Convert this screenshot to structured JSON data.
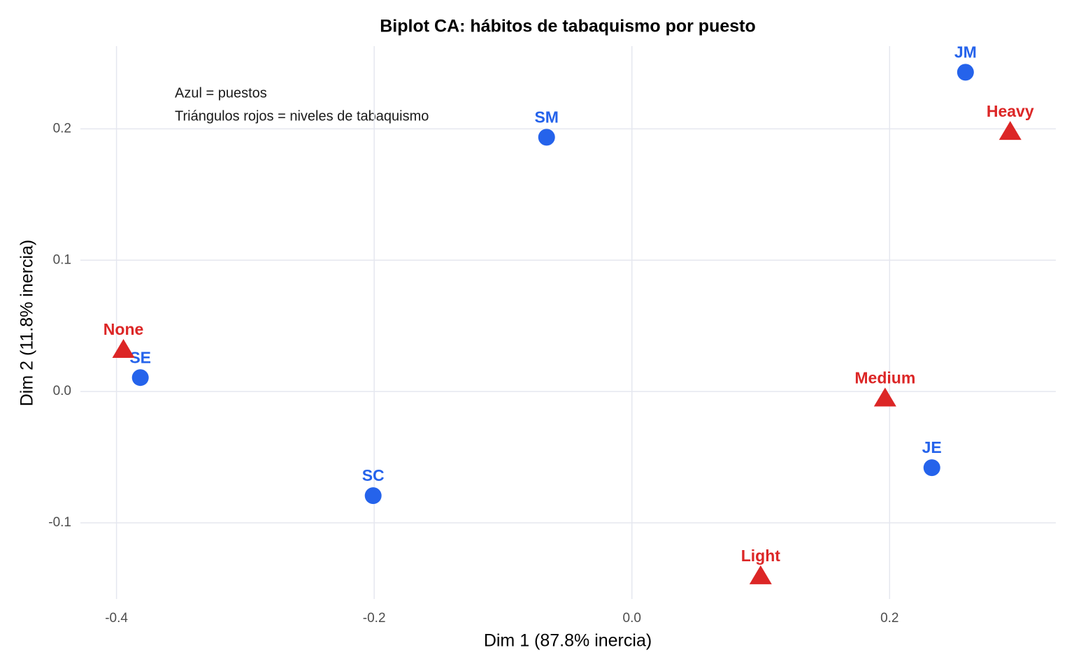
{
  "chart_data": {
    "type": "scatter",
    "title": "Biplot CA: hábitos de tabaquismo por puesto",
    "x_label": "Dim 1 (87.8% inercia)",
    "y_label": "Dim 2 (11.8% inercia)",
    "annotations": [
      "Azul = puestos",
      "Triángulos rojos = niveles de tabaquismo"
    ],
    "xlim": [
      -0.428,
      0.329
    ],
    "ylim": [
      -0.158,
      0.263
    ],
    "xticks": [
      -0.4,
      -0.2,
      {
        "value": 0,
        "label": "0.0"
      },
      0.2
    ],
    "yticks": [
      -0.1,
      {
        "value": 0,
        "label": "0.0"
      },
      0.1,
      0.2
    ],
    "grid": true,
    "series": [
      {
        "color": "#2563eb",
        "marker": "circle",
        "labels": [
          "SE",
          "SM",
          "JM",
          "JE",
          "SC"
        ],
        "x": [
          -0.3815,
          -0.0662,
          0.2589,
          0.2328,
          -0.2008
        ],
        "values": [
          0.0106,
          0.1936,
          0.2431,
          -0.058,
          -0.0793
        ]
      },
      {
        "color": "#dc2626",
        "marker": "triangle",
        "labels": [
          "None",
          "Light",
          "Medium",
          "Heavy"
        ],
        "x": [
          -0.3946,
          0.0999,
          0.1965,
          0.2936
        ],
        "values": [
          0.032,
          -0.1404,
          -0.005,
          0.198
        ]
      }
    ]
  }
}
